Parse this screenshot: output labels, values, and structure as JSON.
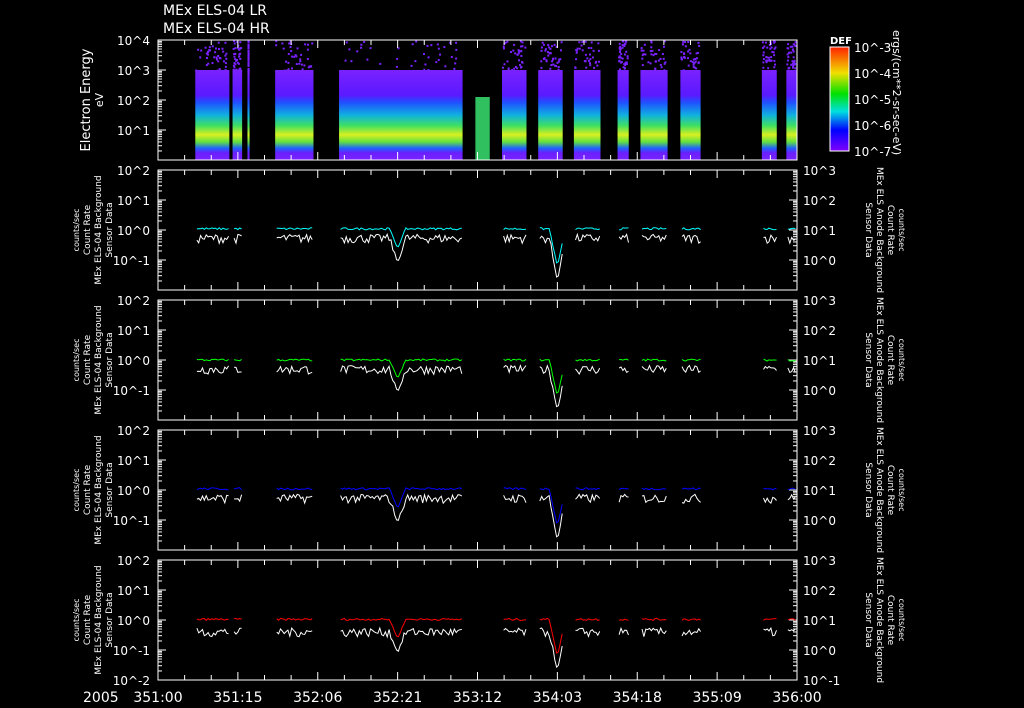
{
  "chart_data": {
    "type": "spectrogram+line",
    "titles": [
      "MEx ELS-04 LR",
      "MEx ELS-04 HR"
    ],
    "year_label": "2005",
    "x_axis": {
      "unit": "day-of-year:hour",
      "range_hours": [
        0,
        120
      ],
      "tick_labels": [
        "351:00",
        "351:15",
        "352:06",
        "352:21",
        "353:12",
        "354:03",
        "354:18",
        "355:09",
        "356:00"
      ]
    },
    "data_segments_hours": [
      [
        7,
        13.4
      ],
      [
        14,
        15.8
      ],
      [
        16.8,
        17.2
      ],
      [
        22,
        29.2
      ],
      [
        34,
        57.2
      ],
      [
        59.6,
        62.3
      ],
      [
        64.6,
        69.2
      ],
      [
        71.4,
        76
      ],
      [
        78.1,
        83.1
      ],
      [
        86.3,
        88.4
      ],
      [
        90.6,
        95.7
      ],
      [
        98.1,
        101.9
      ],
      [
        113.4,
        116.2
      ],
      [
        118,
        120
      ]
    ],
    "spectrogram": {
      "ylabel": "Electron Energy",
      "yunit": "eV",
      "y_tick_labels": [
        "10^4",
        "10^3",
        "10^2",
        "10^1"
      ],
      "ylim_log10": [
        0,
        4
      ],
      "colorbar": {
        "title": "DEF",
        "tick_labels": [
          "10^-3",
          "10^-4",
          "10^-5",
          "10^-6",
          "10^-7"
        ],
        "unit": "ergs/(cm**2-sr-sec-eV)"
      }
    },
    "panels": [
      {
        "left_label": [
          "Sensor Data",
          "MEx ELS-04 Background",
          "Count Rate",
          "counts/sec"
        ],
        "right_label": [
          "Sensor Data",
          "MEx ELS Anode Background",
          "Count Rate",
          "counts/sec"
        ],
        "color": "#00ffff",
        "colored_level": 1.1,
        "white_level": 0.6
      },
      {
        "left_label": [
          "Sensor Data",
          "MEx ELS-04 Background",
          "Count Rate",
          "counts/sec"
        ],
        "right_label": [
          "Sensor Data",
          "MEx ELS Anode Background",
          "Count Rate",
          "counts/sec"
        ],
        "color": "#00ff00",
        "colored_level": 1.0,
        "white_level": 0.55
      },
      {
        "left_label": [
          "Sensor Data",
          "MEx ELS-04 Background",
          "Count Rate",
          "counts/sec"
        ],
        "right_label": [
          "Sensor Data",
          "MEx ELS Anode Background",
          "Count Rate",
          "counts/sec"
        ],
        "color": "#0000ff",
        "colored_level": 1.1,
        "white_level": 0.6
      },
      {
        "left_label": [
          "Sensor Data",
          "MEx ELS-04 Background",
          "Count Rate",
          "counts/sec"
        ],
        "right_label": [
          "Sensor Data",
          "MEx ELS Anode Background",
          "Count Rate",
          "counts/sec"
        ],
        "color": "#ff0000",
        "colored_level": 1.05,
        "white_level": 0.45
      }
    ],
    "line_left_ticks": [
      "10^2",
      "10^1",
      "10^0",
      "10^-1",
      "10^-2"
    ],
    "line_right_ticks": [
      "10^3",
      "10^2",
      "10^1",
      "10^0",
      "10^-1"
    ],
    "line_ylim_log10": [
      -2,
      2
    ],
    "dips_hours": [
      {
        "t": 45,
        "min": 0.08
      },
      {
        "t": 75,
        "min": 0.02
      }
    ]
  }
}
